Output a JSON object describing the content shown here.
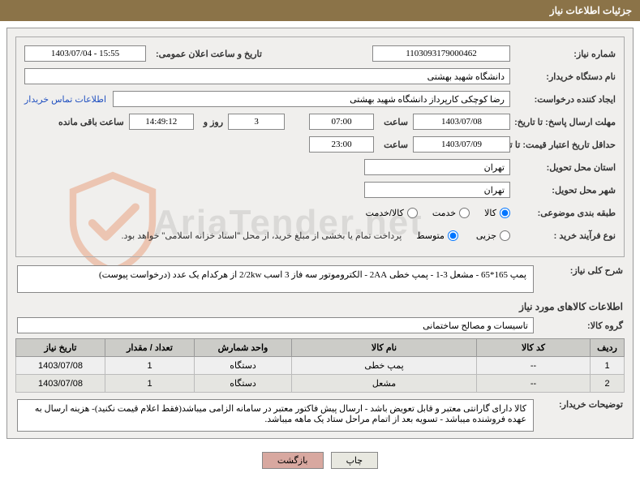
{
  "header": {
    "title": "جزئیات اطلاعات نیاز"
  },
  "fields": {
    "need_no_label": "شماره نیاز:",
    "need_no": "1103093179000462",
    "announce_datetime_label": "تاریخ و ساعت اعلان عمومی:",
    "announce_datetime": "1403/07/04 - 15:55",
    "buyer_org_label": "نام دستگاه خریدار:",
    "buyer_org": "دانشگاه شهید بهشتی",
    "requester_label": "ایجاد کننده درخواست:",
    "requester": "رضا کوچکی کارپرداز دانشگاه شهید بهشتی",
    "buyer_contact_link": "اطلاعات تماس خریدار",
    "reply_deadline_label": "مهلت ارسال پاسخ: تا تاریخ:",
    "reply_deadline_date": "1403/07/08",
    "hour_label": "ساعت",
    "reply_deadline_time": "07:00",
    "days_and": "روز و",
    "countdown_days": "3",
    "countdown_time": "14:49:12",
    "remaining_label": "ساعت باقی مانده",
    "price_validity_label": "حداقل تاریخ اعتبار قیمت: تا تاریخ:",
    "price_validity_date": "1403/07/09",
    "price_validity_time": "23:00",
    "delivery_province_label": "استان محل تحویل:",
    "delivery_province": "تهران",
    "delivery_city_label": "شهر محل تحویل:",
    "delivery_city": "تهران",
    "category_label": "طبقه بندی موضوعی:",
    "cat_goods": "کالا",
    "cat_service": "خدمت",
    "cat_both": "کالا/خدمت",
    "purchase_process_label": "نوع فرآیند خرید :",
    "proc_partial": "جزیی",
    "proc_medium": "متوسط",
    "purchase_note": "پرداخت تمام یا بخشی از مبلغ خرید، از محل \"اسناد خزانه اسلامی\" خواهد بود.",
    "need_desc_label": "شرح کلی نیاز:",
    "need_desc": "پمپ 165*65 - مشعل 3-1 - پمپ خطی 2AA - الکتروموتور سه فاز 3 اسب 2/2kw از هرکدام یک عدد (درخواست پیوست)",
    "goods_info_title": "اطلاعات کالاهای مورد نیاز",
    "goods_group_label": "گروه کالا:",
    "goods_group": "تاسیسات و مصالح ساختمانی",
    "buyer_notes_label": "توضیحات خریدار:",
    "buyer_notes": "کالا دارای گارانتی معتبر و قابل تعویض باشد - ارسال پیش فاکتور معتبر در سامانه الزامی میباشد(فقط اعلام قیمت نکنید)- هزینه ارسال به عهده فروشنده میباشد - تسویه بعد از اتمام مراحل ستاد یک ماهه میباشد."
  },
  "table": {
    "headers": {
      "row": "ردیف",
      "code": "کد کالا",
      "name": "نام کالا",
      "unit": "واحد شمارش",
      "qty": "تعداد / مقدار",
      "date": "تاریخ نیاز"
    },
    "rows": [
      {
        "row": "1",
        "code": "--",
        "name": "پمپ خطی",
        "unit": "دستگاه",
        "qty": "1",
        "date": "1403/07/08"
      },
      {
        "row": "2",
        "code": "--",
        "name": "مشعل",
        "unit": "دستگاه",
        "qty": "1",
        "date": "1403/07/08"
      }
    ]
  },
  "buttons": {
    "print": "چاپ",
    "back": "بازگشت"
  },
  "watermark_text": "AriaTender.net"
}
